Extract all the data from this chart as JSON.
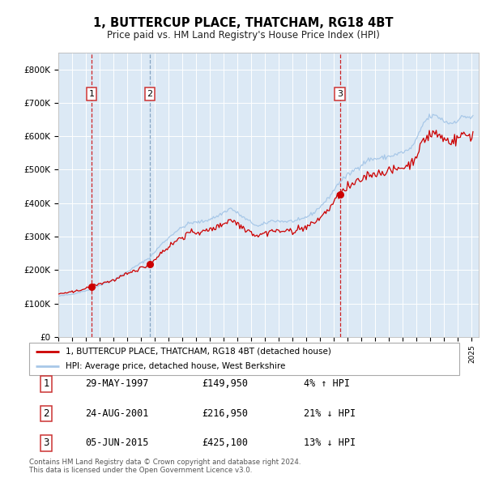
{
  "title": "1, BUTTERCUP PLACE, THATCHAM, RG18 4BT",
  "subtitle": "Price paid vs. HM Land Registry's House Price Index (HPI)",
  "hpi_color": "#a8c8e8",
  "price_color": "#cc0000",
  "bg_color": "#dce9f5",
  "fig_bg": "#f0f4fa",
  "ylabel_ticks": [
    "£0",
    "£100K",
    "£200K",
    "£300K",
    "£400K",
    "£500K",
    "£600K",
    "£700K",
    "£800K"
  ],
  "ytick_vals": [
    0,
    100000,
    200000,
    300000,
    400000,
    500000,
    600000,
    700000,
    800000
  ],
  "ylim": [
    0,
    850000
  ],
  "xlim_start": 1995.0,
  "xlim_end": 2025.5,
  "sale_t": [
    1997.41,
    2001.65,
    2015.43
  ],
  "sale_prices": [
    149950,
    216950,
    425100
  ],
  "sale_labels": [
    "1",
    "2",
    "3"
  ],
  "sale_date_strs": [
    "29-MAY-1997",
    "24-AUG-2001",
    "05-JUN-2015"
  ],
  "sale_price_strs": [
    "£149,950",
    "£216,950",
    "£425,100"
  ],
  "sale_hpi_strs": [
    "4% ↑ HPI",
    "21% ↓ HPI",
    "13% ↓ HPI"
  ],
  "legend_line1": "1, BUTTERCUP PLACE, THATCHAM, RG18 4BT (detached house)",
  "legend_line2": "HPI: Average price, detached house, West Berkshire",
  "footnote1": "Contains HM Land Registry data © Crown copyright and database right 2024.",
  "footnote2": "This data is licensed under the Open Government Licence v3.0."
}
